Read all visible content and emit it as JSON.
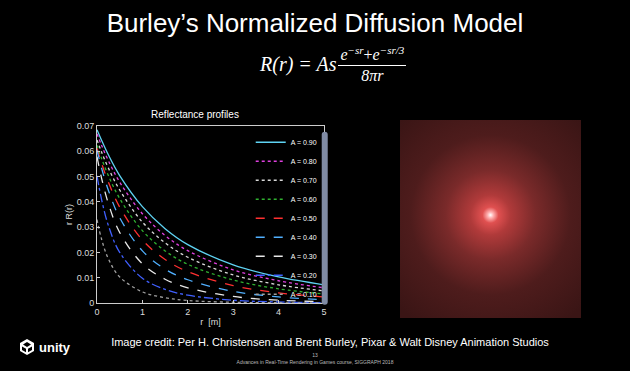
{
  "slide": {
    "title": "Burley’s Normalized Diffusion Model",
    "formula": {
      "lhs": "R(r) = As",
      "numerator": [
        [
          "e",
          "−sr"
        ],
        "+",
        [
          "e",
          "−sr/3"
        ]
      ],
      "denominator": "8πr"
    },
    "credit": "Image credit: Per H. Christensen and Brent Burley, Pixar & Walt Disney Animation Studios",
    "page": "13",
    "footer": "Advances in Real-Time Rendering in Games course, SIGGRAPH 2018",
    "logo_text": "unity"
  },
  "chart_data": {
    "type": "line",
    "title": "Reflectance profiles",
    "x_label": "r  [m]",
    "y_label": "r R(r)",
    "x": [
      0,
      0.1,
      0.25,
      0.5,
      1,
      1.5,
      2,
      3,
      4,
      5
    ],
    "series": [
      {
        "name": "A = 0.90",
        "color": "#5fd3f3",
        "line_style": "solid",
        "values": [
          0.0685,
          0.0644,
          0.0586,
          0.0504,
          0.0381,
          0.0294,
          0.0231,
          0.0151,
          0.0103,
          0.0072
        ]
      },
      {
        "name": "A = 0.80",
        "color": "#e040e0",
        "line_style": "dot",
        "values": [
          0.0669,
          0.0624,
          0.0563,
          0.0478,
          0.0353,
          0.0267,
          0.0207,
          0.0131,
          0.0088,
          0.006
        ]
      },
      {
        "name": "A = 0.70",
        "color": "#d8d8d8",
        "line_style": "dot",
        "values": [
          0.0645,
          0.0597,
          0.0534,
          0.0447,
          0.032,
          0.0238,
          0.0181,
          0.0111,
          0.0072,
          0.0048
        ]
      },
      {
        "name": "A = 0.60",
        "color": "#30b030",
        "line_style": "dot",
        "values": [
          0.0624,
          0.0572,
          0.0504,
          0.0413,
          0.0286,
          0.0206,
          0.0153,
          0.0091,
          0.0056,
          0.0036
        ]
      },
      {
        "name": "A = 0.50",
        "color": "#ff3030",
        "line_style": "dash",
        "values": [
          0.0612,
          0.0553,
          0.0478,
          0.0379,
          0.0249,
          0.0172,
          0.0124,
          0.0069,
          0.004,
          0.0024
        ]
      },
      {
        "name": "A = 0.40",
        "color": "#50b0ff",
        "line_style": "dash",
        "values": [
          0.0604,
          0.0534,
          0.0446,
          0.0337,
          0.0206,
          0.0134,
          0.0092,
          0.0046,
          0.0024,
          0.0013
        ]
      },
      {
        "name": "A = 0.30",
        "color": "#e8e8e8",
        "line_style": "dash",
        "values": [
          0.0579,
          0.0494,
          0.0394,
          0.0279,
          0.0155,
          0.0094,
          0.006,
          0.0026,
          0.0011,
          0.0005
        ]
      },
      {
        "name": "A = 0.20",
        "color": "#4060ff",
        "line_style": "dashdot",
        "values": [
          0.0503,
          0.041,
          0.0307,
          0.02,
          0.0098,
          0.0054,
          0.0031,
          0.0011,
          0.0004,
          0.0001
        ]
      },
      {
        "name": "A = 0.10",
        "color": "#a0a0a0",
        "line_style": "dot",
        "values": [
          0.033,
          0.0253,
          0.0175,
          0.0103,
          0.0044,
          0.0021,
          0.001,
          0.0003,
          0.0001,
          0
        ]
      }
    ],
    "xlim": [
      0,
      5
    ],
    "xticks": [
      0,
      1,
      2,
      3,
      4,
      5
    ],
    "ylim": [
      0,
      0.07
    ],
    "yticks": [
      0,
      0.01,
      0.02,
      0.03,
      0.04,
      0.05,
      0.06,
      0.07
    ],
    "grid": false,
    "legend": "upper right"
  }
}
